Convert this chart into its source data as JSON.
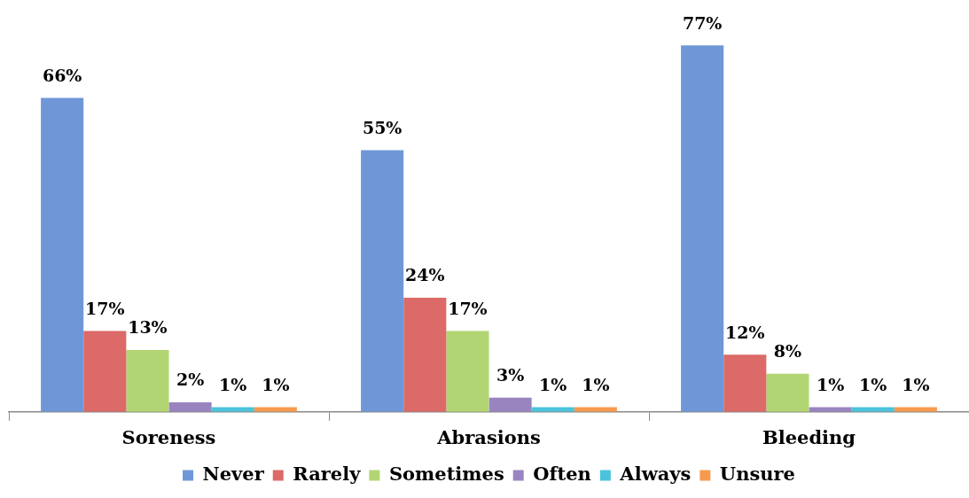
{
  "chart_data": {
    "type": "bar",
    "categories": [
      "Soreness",
      "Abrasions",
      "Bleeding"
    ],
    "series": [
      {
        "name": "Never",
        "color": "#6f97d8",
        "values": [
          66,
          55,
          77
        ],
        "value_labels": [
          "66%",
          "55%",
          "77%"
        ]
      },
      {
        "name": "Rarely",
        "color": "#dc6a68",
        "values": [
          17,
          24,
          12
        ],
        "value_labels": [
          "17%",
          "24%",
          "12%"
        ]
      },
      {
        "name": "Sometimes",
        "color": "#b2d573",
        "values": [
          13,
          17,
          8
        ],
        "value_labels": [
          "13%",
          "17%",
          "8%"
        ]
      },
      {
        "name": "Often",
        "color": "#9a84c0",
        "values": [
          2,
          3,
          1
        ],
        "value_labels": [
          "2%",
          "3%",
          "1%"
        ]
      },
      {
        "name": "Always",
        "color": "#4cc3dc",
        "values": [
          1,
          1,
          1
        ],
        "value_labels": [
          "1%",
          "1%",
          "1%"
        ]
      },
      {
        "name": "Unsure",
        "color": "#f79a4e",
        "values": [
          1,
          1,
          1
        ],
        "value_labels": [
          "1%",
          "1%",
          "1%"
        ]
      }
    ],
    "grid": false,
    "legend": "bottom"
  }
}
